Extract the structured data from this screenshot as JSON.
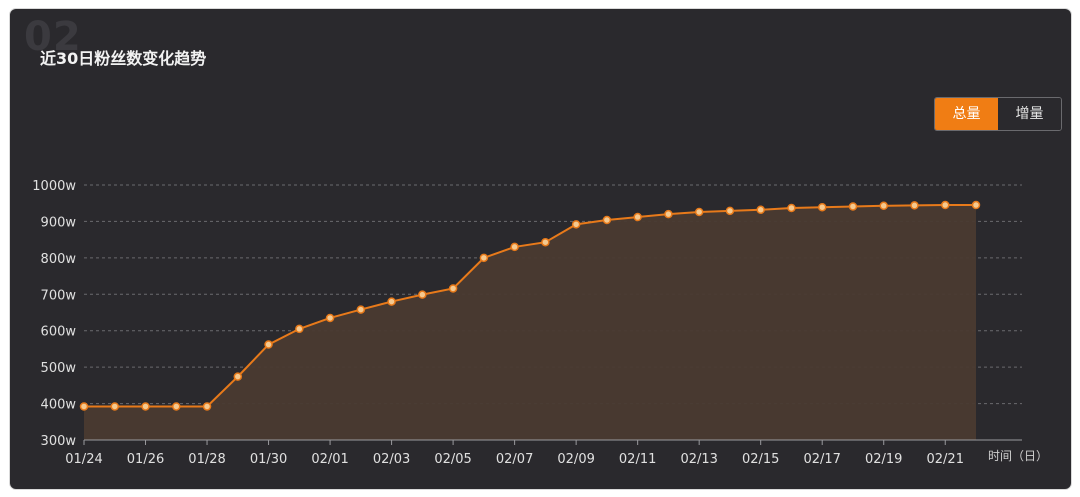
{
  "watermark": "02",
  "title": "近30日粉丝数变化趋势",
  "toggle": {
    "options": [
      "总量",
      "增量"
    ],
    "active": "总量"
  },
  "colors": {
    "background": "#2a292d",
    "accent": "#f07d14",
    "line": "#e87a1a",
    "area": "#4a3a30",
    "grid": "#6a6a6e",
    "text": "#e0e0e0"
  },
  "chart_data": {
    "type": "area",
    "title": "",
    "xlabel": "时间（日）",
    "ylabel": "",
    "ylim": [
      300,
      1000
    ],
    "yticks": [
      "300w",
      "400w",
      "500w",
      "600w",
      "700w",
      "800w",
      "900w",
      "1000w"
    ],
    "ytick_values": [
      300,
      400,
      500,
      600,
      700,
      800,
      900,
      1000
    ],
    "xtick_labels": [
      "01/24",
      "01/26",
      "01/28",
      "01/30",
      "02/01",
      "02/03",
      "02/05",
      "02/07",
      "02/09",
      "02/11",
      "02/13",
      "02/15",
      "02/17",
      "02/19",
      "02/21"
    ],
    "x": [
      "01/24",
      "01/25",
      "01/26",
      "01/27",
      "01/28",
      "01/29",
      "01/30",
      "01/31",
      "02/01",
      "02/02",
      "02/03",
      "02/04",
      "02/05",
      "02/06",
      "02/07",
      "02/08",
      "02/09",
      "02/10",
      "02/11",
      "02/12",
      "02/13",
      "02/14",
      "02/15",
      "02/16",
      "02/17",
      "02/18",
      "02/19",
      "02/20",
      "02/21",
      "02/22"
    ],
    "series": [
      {
        "values": [
          392,
          392,
          392,
          392,
          392,
          474,
          562,
          605,
          635,
          658,
          680,
          699,
          716,
          800,
          830,
          843,
          892,
          904,
          912,
          920,
          926,
          929,
          932,
          937,
          939,
          941,
          943,
          944,
          945,
          945
        ]
      }
    ],
    "grid": "horizontal dashed",
    "legend": "none"
  }
}
